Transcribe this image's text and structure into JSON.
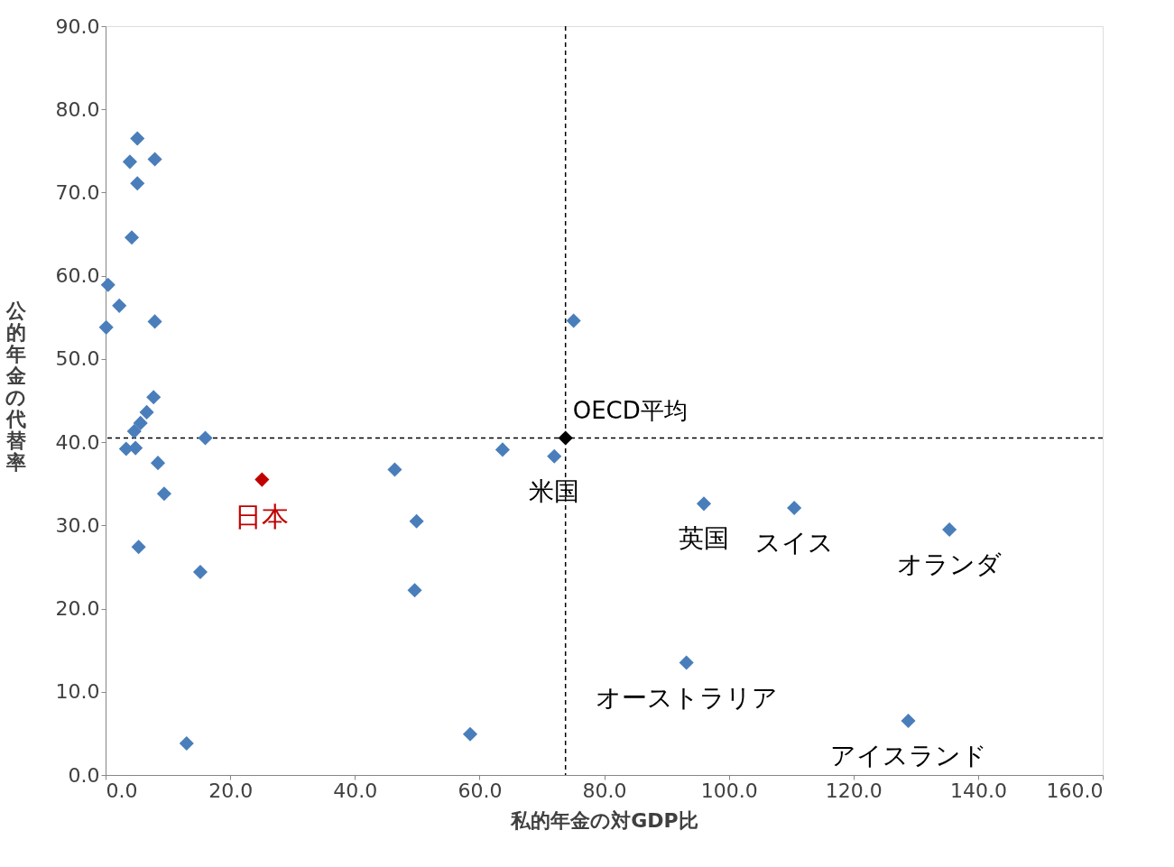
{
  "chart_data": {
    "type": "scatter",
    "xlabel": "私的年金の対GDP比",
    "ylabel": "公的年金の代替率",
    "xlim": [
      0,
      160
    ],
    "xticks": [
      {
        "value": 0,
        "label": "0.0"
      },
      {
        "value": 20,
        "label": "20.0"
      },
      {
        "value": 40,
        "label": "40.0"
      },
      {
        "value": 60,
        "label": "60.0"
      },
      {
        "value": 80,
        "label": "80.0"
      },
      {
        "value": 100,
        "label": "100.0"
      },
      {
        "value": 120,
        "label": "120.0"
      },
      {
        "value": 140,
        "label": "140.0"
      },
      {
        "value": 160,
        "label": "160.0"
      }
    ],
    "ylim": [
      0,
      90
    ],
    "yticks": [
      {
        "value": 0,
        "label": "0.0"
      },
      {
        "value": 10,
        "label": "10.0"
      },
      {
        "value": 20,
        "label": "20.0"
      },
      {
        "value": 30,
        "label": "30.0"
      },
      {
        "value": 40,
        "label": "40.0"
      },
      {
        "value": 50,
        "label": "50.0"
      },
      {
        "value": 60,
        "label": "60.0"
      },
      {
        "value": 70,
        "label": "70.0"
      },
      {
        "value": 80,
        "label": "80.0"
      },
      {
        "value": 90,
        "label": "90.0"
      }
    ],
    "grid": false,
    "marker": "diamond",
    "series": [
      {
        "color": "#4a7ebb",
        "x": [
          5.1,
          3.9,
          7.9,
          5.1,
          4.2,
          0.4,
          2.2,
          0.1,
          7.9,
          7.7,
          6.6,
          5.6,
          4.6,
          3.3,
          4.8,
          16.0,
          8.4,
          9.4,
          5.3,
          15.2,
          13.0,
          46.4,
          49.9,
          49.6,
          58.5,
          63.7,
          72.0,
          75.1,
          96.0,
          110.5,
          135.4,
          93.2,
          128.8
        ],
        "values": [
          76.5,
          73.7,
          74.0,
          71.1,
          64.6,
          58.9,
          56.4,
          53.8,
          54.5,
          45.4,
          43.6,
          42.3,
          41.3,
          39.2,
          39.3,
          40.5,
          37.5,
          33.8,
          27.4,
          24.4,
          3.8,
          36.7,
          30.5,
          22.2,
          4.9,
          39.1,
          38.3,
          54.6,
          32.6,
          32.1,
          29.5,
          13.5,
          6.5
        ]
      },
      {
        "name": "日本",
        "color": "#c00000",
        "x": [
          25.1
        ],
        "values": [
          35.5
        ]
      },
      {
        "name": "OECD平均",
        "color": "#000000",
        "x": [
          73.8
        ],
        "values": [
          40.5
        ]
      }
    ],
    "ref_lines": [
      {
        "axis": "x",
        "value": 73.8,
        "color": "#000000",
        "line_style": "dashed"
      },
      {
        "axis": "y",
        "value": 40.5,
        "color": "#000000",
        "line_style": "dashed"
      }
    ],
    "annotations": [
      {
        "text": "米国",
        "x": 72.0,
        "y": 38.3
      },
      {
        "text": "英国",
        "x": 96.0,
        "y": 32.6
      },
      {
        "text": "スイス",
        "x": 110.5,
        "y": 32.1
      },
      {
        "text": "オランダ",
        "x": 135.4,
        "y": 29.5
      },
      {
        "text": "オーストラリア",
        "x": 93.2,
        "y": 13.5
      },
      {
        "text": "アイスランド",
        "x": 128.8,
        "y": 6.5
      }
    ]
  }
}
